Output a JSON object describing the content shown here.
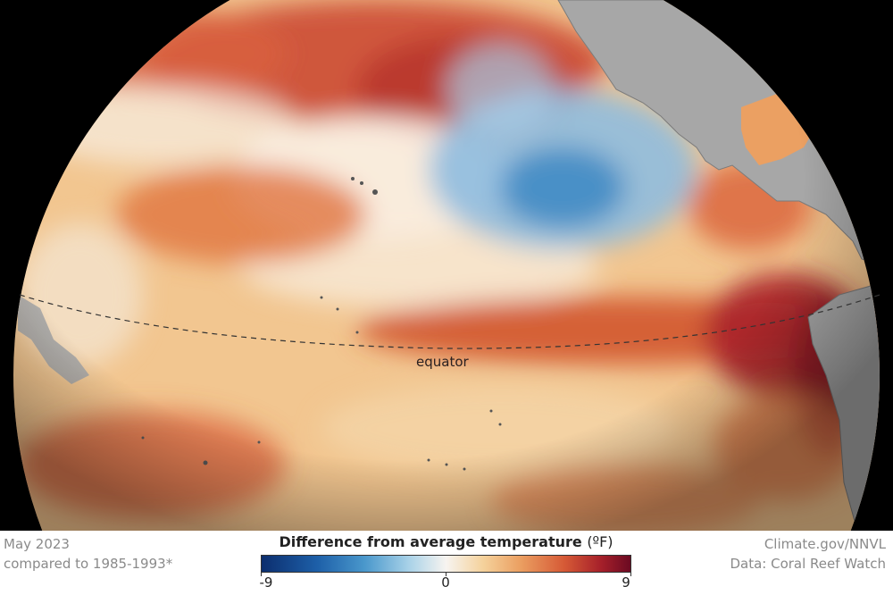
{
  "map": {
    "equator_label": "equator",
    "land_color": "#a7a7a7",
    "ocean_base_color": "#f2c690",
    "warm_anomaly_color": "#b22a24",
    "cool_anomaly_color": "#3c88c4"
  },
  "footer": {
    "date": "May 2023",
    "baseline": "compared to 1985-1993*",
    "credit": "Climate.gov/NNVL",
    "source": "Data: Coral Reef Watch"
  },
  "legend": {
    "title": "Difference from average temperature",
    "unit": "(ºF)",
    "min_label": "-9",
    "mid_label": "0",
    "max_label": "9",
    "scale_min": -9,
    "scale_max": 9
  }
}
